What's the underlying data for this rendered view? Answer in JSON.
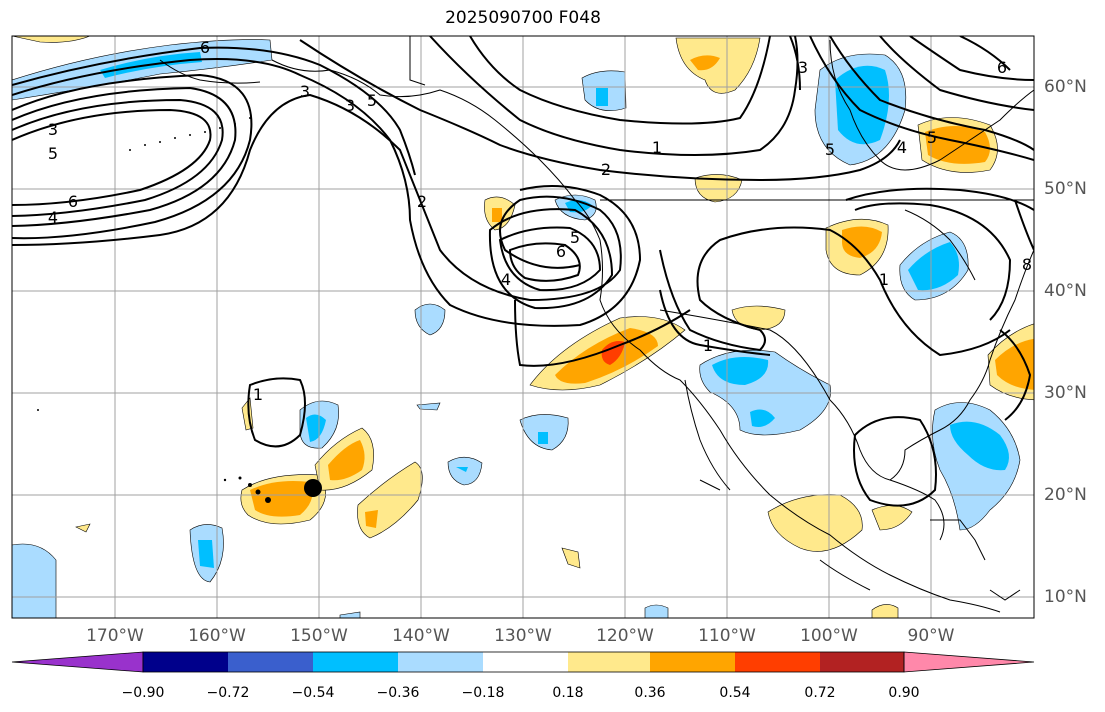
{
  "title": "2025090700 F048",
  "colors": {
    "ocean": "#ffffff",
    "grid": "#a0a0a0",
    "coast": "#000000",
    "contour": "#000000",
    "marker": "#000000"
  },
  "latitude_labels": [
    "60°N",
    "50°N",
    "40°N",
    "30°N",
    "20°N",
    "10°N"
  ],
  "longitude_labels": [
    "170°W",
    "160°W",
    "150°W",
    "140°W",
    "130°W",
    "120°W",
    "110°W",
    "100°W",
    "90°W"
  ],
  "colorbar": {
    "colors": [
      "#9932cc",
      "#00008b",
      "#3a5fcd",
      "#00bfff",
      "#aadcff",
      "#ffffff",
      "#ffe98c",
      "#ffa500",
      "#ff3e00",
      "#b22222",
      "#ff88aa"
    ],
    "tick_labels": [
      "−0.90",
      "−0.72",
      "−0.54",
      "−0.36",
      "−0.18",
      "0.18",
      "0.36",
      "0.54",
      "0.72",
      "0.90"
    ]
  },
  "contour_labels": [
    "6",
    "3",
    "3",
    "5",
    "3",
    "5",
    "6",
    "4",
    "1",
    "2",
    "2",
    "5",
    "6",
    "4",
    "1",
    "1",
    "1",
    "4",
    "5",
    "6",
    "3",
    "5",
    "8"
  ],
  "marker": {
    "name": "point-marker",
    "lon": -150.7,
    "lat": 20.8
  }
}
